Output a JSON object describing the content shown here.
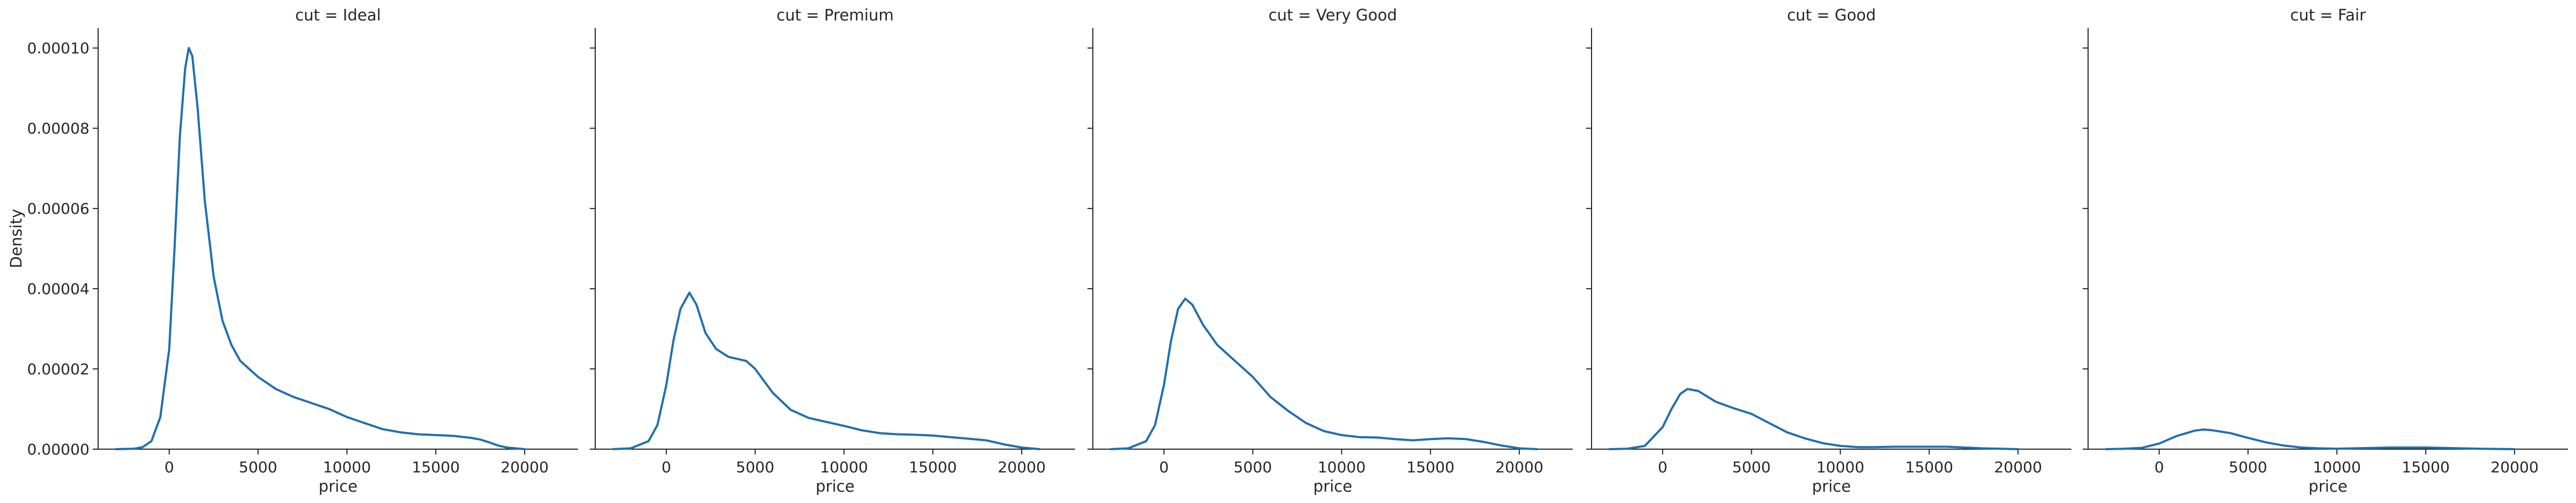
{
  "chart_data": {
    "type": "line",
    "facet_variable": "cut",
    "xlabel": "price",
    "ylabel": "Density",
    "xlim": [
      -4000,
      23000
    ],
    "ylim": [
      0,
      0.000105
    ],
    "xticks": [
      0,
      5000,
      10000,
      15000,
      20000
    ],
    "xtick_labels": [
      "0",
      "5000",
      "10000",
      "15000",
      "20000"
    ],
    "yticks": [
      0,
      2e-05,
      4e-05,
      6e-05,
      8e-05,
      0.0001
    ],
    "ytick_labels": [
      "0.00000",
      "0.00002",
      "0.00004",
      "0.00006",
      "0.00008",
      "0.00010"
    ],
    "line_color": "#1f6fae",
    "grid": false,
    "sharey": true,
    "panels": [
      {
        "title": "cut = Ideal",
        "points": [
          [
            -3000,
            0
          ],
          [
            -2000,
            1e-07
          ],
          [
            -1500,
            5e-07
          ],
          [
            -1000,
            2e-06
          ],
          [
            -500,
            8e-06
          ],
          [
            0,
            2.5e-05
          ],
          [
            300,
            5e-05
          ],
          [
            600,
            7.8e-05
          ],
          [
            900,
            9.5e-05
          ],
          [
            1100,
            0.0001
          ],
          [
            1300,
            9.8e-05
          ],
          [
            1600,
            8.5e-05
          ],
          [
            2000,
            6.2e-05
          ],
          [
            2500,
            4.3e-05
          ],
          [
            3000,
            3.2e-05
          ],
          [
            3500,
            2.6e-05
          ],
          [
            4000,
            2.2e-05
          ],
          [
            5000,
            1.8e-05
          ],
          [
            6000,
            1.5e-05
          ],
          [
            7000,
            1.3e-05
          ],
          [
            8000,
            1.15e-05
          ],
          [
            9000,
            1e-05
          ],
          [
            10000,
            8e-06
          ],
          [
            11000,
            6.5e-06
          ],
          [
            12000,
            5e-06
          ],
          [
            13000,
            4.2e-06
          ],
          [
            14000,
            3.7e-06
          ],
          [
            15000,
            3.5e-06
          ],
          [
            16000,
            3.3e-06
          ],
          [
            17000,
            2.8e-06
          ],
          [
            17500,
            2.4e-06
          ],
          [
            18000,
            1.7e-06
          ],
          [
            18500,
            9e-07
          ],
          [
            19000,
            4e-07
          ],
          [
            20000,
            0
          ]
        ]
      },
      {
        "title": "cut = Premium",
        "points": [
          [
            -3000,
            0
          ],
          [
            -2000,
            2e-07
          ],
          [
            -1000,
            2e-06
          ],
          [
            -500,
            6e-06
          ],
          [
            0,
            1.6e-05
          ],
          [
            400,
            2.7e-05
          ],
          [
            800,
            3.5e-05
          ],
          [
            1300,
            3.9e-05
          ],
          [
            1700,
            3.6e-05
          ],
          [
            2200,
            2.9e-05
          ],
          [
            2800,
            2.5e-05
          ],
          [
            3500,
            2.3e-05
          ],
          [
            4000,
            2.25e-05
          ],
          [
            4500,
            2.2e-05
          ],
          [
            5000,
            2e-05
          ],
          [
            5500,
            1.7e-05
          ],
          [
            6000,
            1.4e-05
          ],
          [
            7000,
            9.8e-06
          ],
          [
            8000,
            7.8e-06
          ],
          [
            9000,
            6.8e-06
          ],
          [
            10000,
            5.8e-06
          ],
          [
            11000,
            4.7e-06
          ],
          [
            12000,
            4e-06
          ],
          [
            13000,
            3.7e-06
          ],
          [
            14000,
            3.6e-06
          ],
          [
            15000,
            3.4e-06
          ],
          [
            16000,
            3e-06
          ],
          [
            17000,
            2.6e-06
          ],
          [
            18000,
            2.2e-06
          ],
          [
            19000,
            1.2e-06
          ],
          [
            20000,
            4e-07
          ],
          [
            21000,
            0
          ]
        ]
      },
      {
        "title": "cut = Very Good",
        "points": [
          [
            -3000,
            0
          ],
          [
            -2000,
            2e-07
          ],
          [
            -1000,
            2e-06
          ],
          [
            -500,
            6e-06
          ],
          [
            0,
            1.6e-05
          ],
          [
            400,
            2.7e-05
          ],
          [
            800,
            3.5e-05
          ],
          [
            1200,
            3.75e-05
          ],
          [
            1600,
            3.6e-05
          ],
          [
            2200,
            3.1e-05
          ],
          [
            3000,
            2.6e-05
          ],
          [
            4000,
            2.2e-05
          ],
          [
            5000,
            1.8e-05
          ],
          [
            6000,
            1.3e-05
          ],
          [
            7000,
            9.5e-06
          ],
          [
            8000,
            6.5e-06
          ],
          [
            9000,
            4.5e-06
          ],
          [
            10000,
            3.5e-06
          ],
          [
            11000,
            3e-06
          ],
          [
            12000,
            2.9e-06
          ],
          [
            13000,
            2.5e-06
          ],
          [
            14000,
            2.2e-06
          ],
          [
            15000,
            2.5e-06
          ],
          [
            16000,
            2.7e-06
          ],
          [
            17000,
            2.5e-06
          ],
          [
            18000,
            1.8e-06
          ],
          [
            19000,
            9e-07
          ],
          [
            20000,
            2e-07
          ],
          [
            21000,
            0
          ]
        ]
      },
      {
        "title": "cut = Good",
        "points": [
          [
            -3000,
            0
          ],
          [
            -2000,
            1e-07
          ],
          [
            -1000,
            8e-07
          ],
          [
            0,
            5.5e-06
          ],
          [
            500,
            1e-05
          ],
          [
            1000,
            1.38e-05
          ],
          [
            1400,
            1.5e-05
          ],
          [
            2000,
            1.45e-05
          ],
          [
            3000,
            1.18e-05
          ],
          [
            4000,
            1.02e-05
          ],
          [
            5000,
            8.8e-06
          ],
          [
            6000,
            6.5e-06
          ],
          [
            7000,
            4.2e-06
          ],
          [
            8000,
            2.7e-06
          ],
          [
            9000,
            1.5e-06
          ],
          [
            10000,
            8e-07
          ],
          [
            11000,
            5e-07
          ],
          [
            12000,
            5e-07
          ],
          [
            13000,
            6e-07
          ],
          [
            14000,
            6e-07
          ],
          [
            15000,
            6e-07
          ],
          [
            16000,
            6e-07
          ],
          [
            17000,
            4e-07
          ],
          [
            18000,
            2e-07
          ],
          [
            20000,
            0
          ]
        ]
      },
      {
        "title": "cut = Fair",
        "points": [
          [
            -3000,
            0
          ],
          [
            -2000,
            1e-07
          ],
          [
            -1000,
            3e-07
          ],
          [
            0,
            1.4e-06
          ],
          [
            1000,
            3.3e-06
          ],
          [
            2000,
            4.6e-06
          ],
          [
            2500,
            4.9e-06
          ],
          [
            3000,
            4.7e-06
          ],
          [
            4000,
            4e-06
          ],
          [
            5000,
            2.8e-06
          ],
          [
            6000,
            1.7e-06
          ],
          [
            7000,
            9e-07
          ],
          [
            8000,
            4e-07
          ],
          [
            9000,
            2e-07
          ],
          [
            10000,
            1e-07
          ],
          [
            11000,
            2e-07
          ],
          [
            12000,
            3e-07
          ],
          [
            13000,
            4e-07
          ],
          [
            14000,
            4e-07
          ],
          [
            15000,
            4e-07
          ],
          [
            16000,
            3e-07
          ],
          [
            17000,
            2e-07
          ],
          [
            18000,
            1e-07
          ],
          [
            20000,
            0
          ]
        ]
      }
    ]
  }
}
